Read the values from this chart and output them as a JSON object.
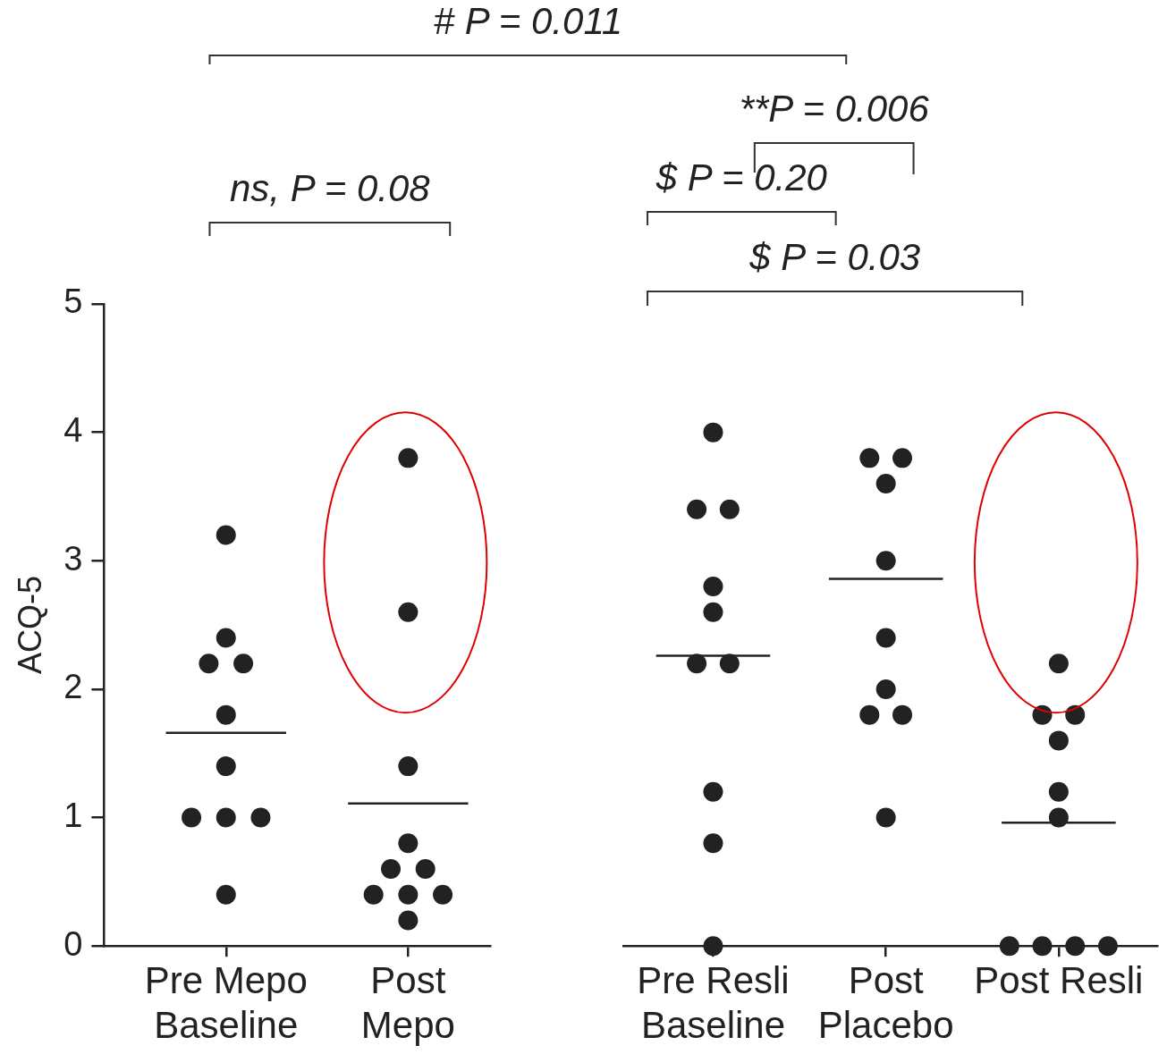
{
  "chart_data": [
    {
      "type": "scatter",
      "ylabel": "ACQ-5",
      "ylim": [
        0,
        5
      ],
      "yticks": [
        0,
        1,
        2,
        3,
        4,
        5
      ],
      "marker": "circle",
      "categories": [
        "Pre Mepo\nBaseline",
        "Post\nMepo"
      ],
      "series": [
        {
          "color": "#222222",
          "x": [
            "Pre Mepo\nBaseline",
            "Pre Mepo\nBaseline",
            "Pre Mepo\nBaseline",
            "Pre Mepo\nBaseline",
            "Pre Mepo\nBaseline",
            "Pre Mepo\nBaseline",
            "Pre Mepo\nBaseline",
            "Pre Mepo\nBaseline",
            "Pre Mepo\nBaseline",
            "Pre Mepo\nBaseline",
            "Post\nMepo",
            "Post\nMepo",
            "Post\nMepo",
            "Post\nMepo",
            "Post\nMepo",
            "Post\nMepo",
            "Post\nMepo",
            "Post\nMepo",
            "Post\nMepo",
            "Post\nMepo"
          ],
          "values": [
            3.2,
            2.4,
            2.2,
            2.2,
            1.8,
            1.4,
            1.0,
            1.0,
            1.0,
            0.4,
            3.8,
            2.6,
            1.4,
            0.8,
            0.6,
            0.6,
            0.4,
            0.4,
            0.4,
            0.2
          ]
        }
      ],
      "ref_lines": [
        {
          "axis": "y",
          "value": 1.66,
          "color": "#222222"
        },
        {
          "axis": "y",
          "value": 1.11,
          "color": "#222222"
        }
      ],
      "annotations": [
        "# P = 0.011",
        "ns, P = 0.08"
      ]
    },
    {
      "type": "scatter",
      "ylim": [
        0,
        5
      ],
      "yticks": [
        0,
        1,
        2,
        3,
        4,
        5
      ],
      "marker": "circle",
      "tick_labels": "x",
      "categories": [
        "Pre Resli\nBaseline",
        "Post\nPlacebo",
        "Post Resli"
      ],
      "series": [
        {
          "color": "#222222",
          "x": [
            "Pre Resli\nBaseline",
            "Pre Resli\nBaseline",
            "Pre Resli\nBaseline",
            "Pre Resli\nBaseline",
            "Pre Resli\nBaseline",
            "Pre Resli\nBaseline",
            "Pre Resli\nBaseline",
            "Pre Resli\nBaseline",
            "Pre Resli\nBaseline",
            "Pre Resli\nBaseline",
            "Post\nPlacebo",
            "Post\nPlacebo",
            "Post\nPlacebo",
            "Post\nPlacebo",
            "Post\nPlacebo",
            "Post\nPlacebo",
            "Post\nPlacebo",
            "Post\nPlacebo",
            "Post\nPlacebo",
            "Post Resli",
            "Post Resli",
            "Post Resli",
            "Post Resli",
            "Post Resli",
            "Post Resli",
            "Post Resli",
            "Post Resli",
            "Post Resli",
            "Post Resli"
          ],
          "values": [
            4.0,
            3.4,
            3.4,
            2.8,
            2.6,
            2.2,
            2.2,
            1.2,
            0.8,
            0.0,
            3.8,
            3.8,
            3.6,
            3.0,
            2.4,
            2.0,
            1.8,
            1.8,
            1.0,
            2.2,
            1.8,
            1.8,
            1.6,
            1.2,
            1.0,
            0.0,
            0.0,
            0.0,
            0.0
          ]
        }
      ],
      "ref_lines": [
        {
          "axis": "y",
          "value": 2.26,
          "color": "#222222"
        },
        {
          "axis": "y",
          "value": 2.86,
          "color": "#222222"
        },
        {
          "axis": "y",
          "value": 0.96,
          "color": "#222222"
        }
      ],
      "annotations": [
        "**P = 0.006",
        "$ P = 0.20",
        "$ P = 0.03"
      ]
    }
  ]
}
